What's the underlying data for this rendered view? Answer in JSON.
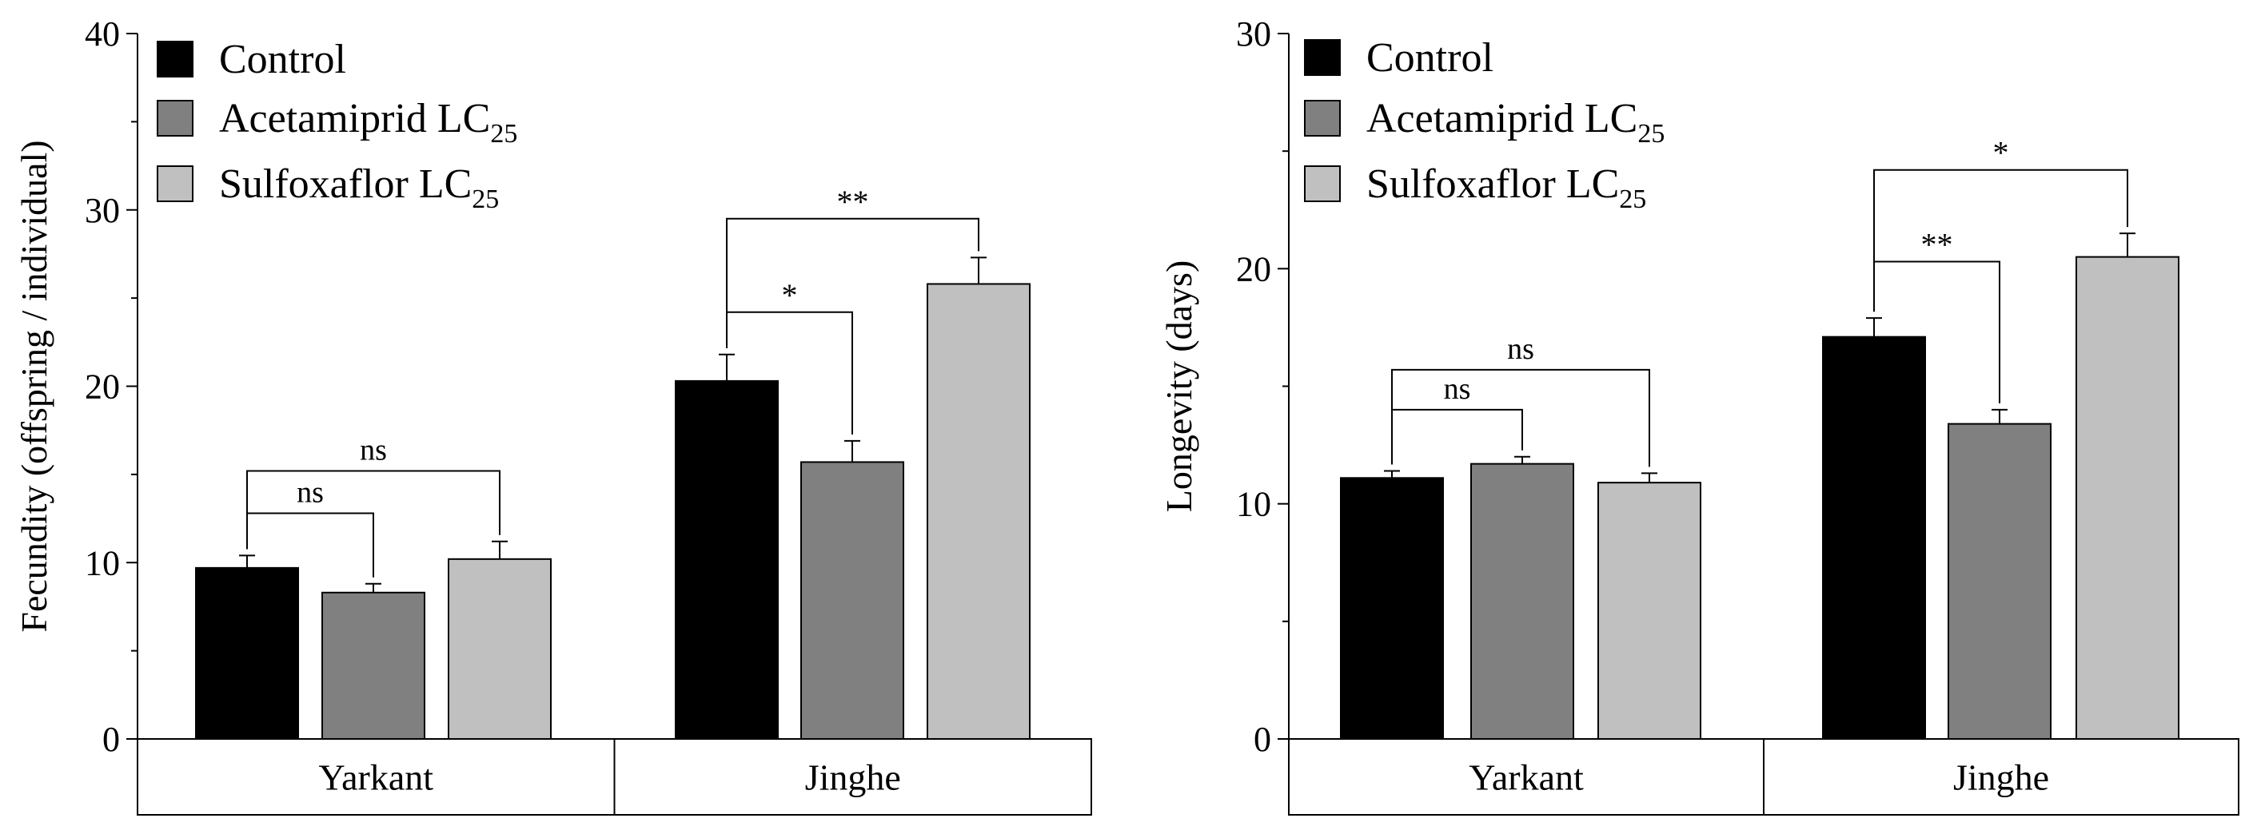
{
  "chart_data": [
    {
      "type": "bar",
      "ylabel": "Fecundity (offspring / individual)",
      "ylim": [
        0,
        40
      ],
      "yticks": [
        0,
        10,
        20,
        30,
        40
      ],
      "groups": [
        "Yarkant",
        "Jinghe"
      ],
      "series": [
        {
          "name": "Control",
          "sub": "",
          "color": "#000000",
          "values": [
            9.7,
            20.3
          ],
          "errors": [
            0.7,
            1.5
          ]
        },
        {
          "name": "Acetamiprid LC",
          "sub": "25",
          "color": "#808080",
          "values": [
            8.3,
            15.7
          ],
          "errors": [
            0.5,
            1.2
          ]
        },
        {
          "name": "Sulfoxaflor LC",
          "sub": "25",
          "color": "#c0c0c0",
          "values": [
            10.2,
            25.8
          ],
          "errors": [
            1.0,
            1.5
          ]
        }
      ],
      "annotations": [
        {
          "group": 0,
          "from": 0,
          "to": 1,
          "label": "ns",
          "level": 12.8
        },
        {
          "group": 0,
          "from": 0,
          "to": 2,
          "label": "ns",
          "level": 15.2
        },
        {
          "group": 1,
          "from": 0,
          "to": 1,
          "label": "*",
          "level": 24.2
        },
        {
          "group": 1,
          "from": 0,
          "to": 2,
          "label": "**",
          "level": 29.5
        }
      ]
    },
    {
      "type": "bar",
      "ylabel": "Longevity (days)",
      "ylim": [
        0,
        30
      ],
      "yticks": [
        0,
        10,
        20,
        30
      ],
      "groups": [
        "Yarkant",
        "Jinghe"
      ],
      "series": [
        {
          "name": "Control",
          "sub": "",
          "color": "#000000",
          "values": [
            11.1,
            17.1
          ],
          "errors": [
            0.3,
            0.8
          ]
        },
        {
          "name": "Acetamiprid LC",
          "sub": "25",
          "color": "#808080",
          "values": [
            11.7,
            13.4
          ],
          "errors": [
            0.3,
            0.6
          ]
        },
        {
          "name": "Sulfoxaflor LC",
          "sub": "25",
          "color": "#c0c0c0",
          "values": [
            10.9,
            20.5
          ],
          "errors": [
            0.4,
            1.0
          ]
        }
      ],
      "annotations": [
        {
          "group": 0,
          "from": 0,
          "to": 1,
          "label": "ns",
          "level": 14.0
        },
        {
          "group": 0,
          "from": 0,
          "to": 2,
          "label": "ns",
          "level": 15.7
        },
        {
          "group": 1,
          "from": 0,
          "to": 1,
          "label": "**",
          "level": 20.3
        },
        {
          "group": 1,
          "from": 0,
          "to": 2,
          "label": "*",
          "level": 24.2
        }
      ]
    }
  ]
}
